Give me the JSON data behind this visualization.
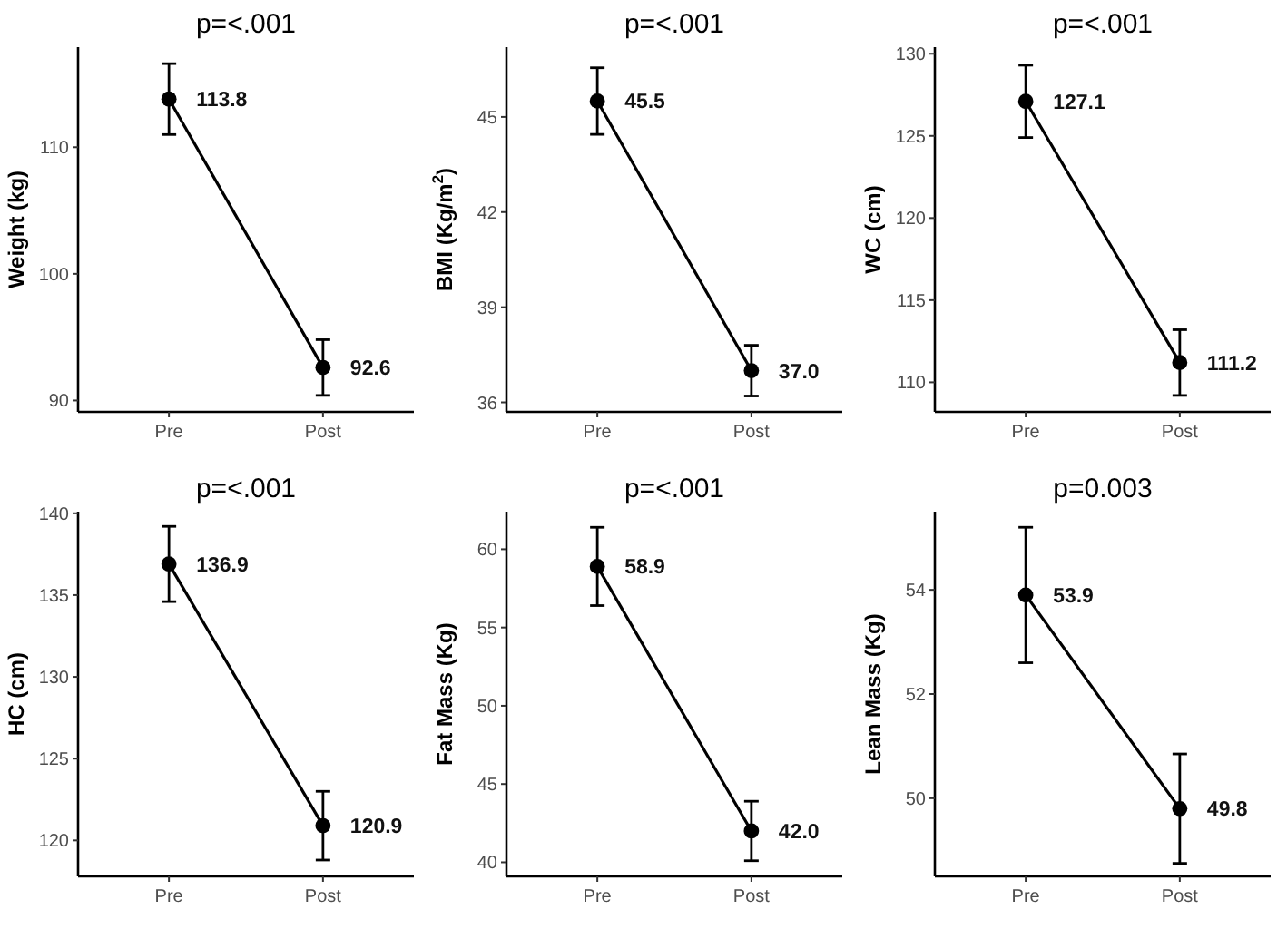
{
  "chart_data": [
    {
      "type": "line",
      "title": "p=<.001",
      "ylabel": "Weight (kg)",
      "categories": [
        "Pre",
        "Post"
      ],
      "ylim": [
        89.1,
        117.9
      ],
      "yticks": [
        90,
        100,
        110
      ],
      "grid": false,
      "marker": "circle",
      "line_style": "solid",
      "series": [
        {
          "color": "#000000",
          "values": [
            113.8,
            92.6
          ],
          "errors": [
            2.8,
            2.2
          ],
          "value_labels": [
            "113.8",
            "92.6"
          ]
        }
      ]
    },
    {
      "type": "line",
      "title": "p=<.001",
      "ylabel": "BMI (Kg/m$^{2}$)",
      "categories": [
        "Pre",
        "Post"
      ],
      "ylim": [
        35.7,
        47.2
      ],
      "yticks": [
        36,
        39,
        42,
        45
      ],
      "grid": false,
      "marker": "circle",
      "line_style": "solid",
      "series": [
        {
          "color": "#000000",
          "values": [
            45.5,
            37.0
          ],
          "errors": [
            1.05,
            0.8
          ],
          "value_labels": [
            "45.5",
            "37.0"
          ]
        }
      ]
    },
    {
      "type": "line",
      "title": "p=<.001",
      "ylabel": "WC (cm)",
      "categories": [
        "Pre",
        "Post"
      ],
      "ylim": [
        108.2,
        130.4
      ],
      "yticks": [
        110,
        115,
        120,
        125,
        130
      ],
      "grid": false,
      "marker": "circle",
      "line_style": "solid",
      "series": [
        {
          "color": "#000000",
          "values": [
            127.1,
            111.2
          ],
          "errors": [
            2.2,
            2.0
          ],
          "value_labels": [
            "127.1",
            "111.2"
          ]
        }
      ]
    },
    {
      "type": "line",
      "title": "p=<.001",
      "ylabel": "HC (cm)",
      "categories": [
        "Pre",
        "Post"
      ],
      "ylim": [
        117.8,
        140.1
      ],
      "yticks": [
        120,
        125,
        130,
        135,
        140
      ],
      "grid": false,
      "marker": "circle",
      "line_style": "solid",
      "series": [
        {
          "color": "#000000",
          "values": [
            136.9,
            120.9
          ],
          "errors": [
            2.3,
            2.1
          ],
          "value_labels": [
            "136.9",
            "120.9"
          ]
        }
      ]
    },
    {
      "type": "line",
      "title": "p=<.001",
      "ylabel": "Fat Mass (Kg)",
      "categories": [
        "Pre",
        "Post"
      ],
      "ylim": [
        39.1,
        62.4
      ],
      "yticks": [
        40,
        45,
        50,
        55,
        60
      ],
      "grid": false,
      "marker": "circle",
      "line_style": "solid",
      "series": [
        {
          "color": "#000000",
          "values": [
            58.9,
            42.0
          ],
          "errors": [
            2.5,
            1.9
          ],
          "value_labels": [
            "58.9",
            "42.0"
          ]
        }
      ]
    },
    {
      "type": "line",
      "title": "p=0.003",
      "ylabel": "Lean Mass (Kg)",
      "categories": [
        "Pre",
        "Post"
      ],
      "ylim": [
        48.5,
        55.5
      ],
      "yticks": [
        50,
        52,
        54
      ],
      "grid": false,
      "marker": "circle",
      "line_style": "solid",
      "series": [
        {
          "color": "#000000",
          "values": [
            53.9,
            49.8
          ],
          "errors": [
            1.3,
            1.05
          ],
          "value_labels": [
            "53.9",
            "49.8"
          ]
        }
      ]
    }
  ]
}
